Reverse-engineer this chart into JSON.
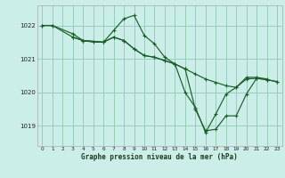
{
  "title": "Graphe pression niveau de la mer (hPa)",
  "bg_color": "#cceee8",
  "grid_color": "#99ccbb",
  "line_color": "#1a5e2a",
  "xlim": [
    -0.5,
    23.5
  ],
  "ylim": [
    1018.4,
    1022.6
  ],
  "yticks": [
    1019,
    1020,
    1021,
    1022
  ],
  "xticks": [
    0,
    1,
    2,
    3,
    4,
    5,
    6,
    7,
    8,
    9,
    10,
    11,
    12,
    13,
    14,
    15,
    16,
    17,
    18,
    19,
    20,
    21,
    22,
    23
  ],
  "series": [
    {
      "x": [
        0,
        1,
        3,
        4,
        6,
        7,
        8,
        9,
        10,
        11,
        12,
        13,
        14,
        15,
        16,
        17,
        18,
        19,
        20,
        21,
        22
      ],
      "y": [
        1022.0,
        1022.0,
        1021.75,
        1021.55,
        1021.5,
        1021.85,
        1022.2,
        1022.3,
        1021.7,
        1021.45,
        1021.05,
        1020.85,
        1020.0,
        1019.55,
        1018.8,
        1019.35,
        1019.95,
        1020.15,
        1020.45,
        1020.45,
        1020.4
      ]
    },
    {
      "x": [
        0,
        1,
        3,
        4,
        6,
        7,
        8,
        9,
        10,
        11,
        12,
        13,
        14,
        15,
        16,
        17,
        18,
        19,
        20,
        21,
        22,
        23
      ],
      "y": [
        1022.0,
        1022.0,
        1021.65,
        1021.55,
        1021.5,
        1021.65,
        1021.55,
        1021.3,
        1021.1,
        1021.05,
        1020.95,
        1020.85,
        1020.7,
        1020.55,
        1020.4,
        1020.3,
        1020.2,
        1020.15,
        1020.4,
        1020.42,
        1020.38,
        1020.32
      ]
    },
    {
      "x": [
        3,
        4,
        5,
        6,
        7,
        8,
        9,
        10,
        11,
        12,
        13,
        14,
        15,
        16,
        17,
        18,
        19,
        20,
        21,
        22,
        23
      ],
      "y": [
        1021.65,
        1021.55,
        1021.5,
        1021.5,
        1021.65,
        1021.55,
        1021.3,
        1021.1,
        1021.05,
        1020.95,
        1020.85,
        1020.7,
        1019.5,
        1018.85,
        1018.9,
        1019.3,
        1019.3,
        1019.95,
        1020.42,
        1020.38,
        1020.32
      ]
    }
  ]
}
